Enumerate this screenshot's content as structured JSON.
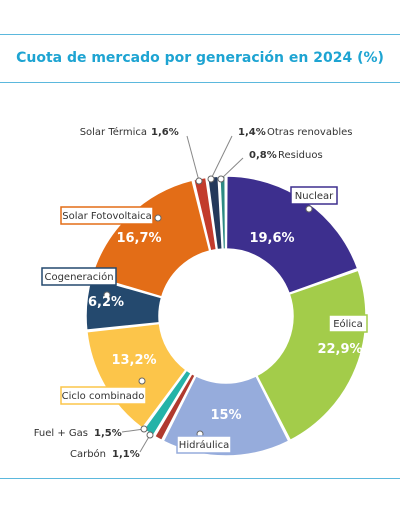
{
  "title": "Cuota de mercado por generación en 2024 (%)",
  "chart_data": {
    "type": "pie",
    "donut": true,
    "slices": [
      {
        "label": "Nuclear",
        "value": 19.6,
        "value_text": "19,6%",
        "color": "#3d2f8e"
      },
      {
        "label": "Eólica",
        "value": 22.9,
        "value_text": "22,9%",
        "color": "#a3cc4a"
      },
      {
        "label": "Hidráulica",
        "value": 15.0,
        "value_text": "15%",
        "color": "#96acdc"
      },
      {
        "label": "Carbón",
        "value": 1.1,
        "value_text": "1,1%",
        "color": "#b03a2e"
      },
      {
        "label": "Fuel + Gas",
        "value": 1.5,
        "value_text": "1,5%",
        "color": "#25b3a8"
      },
      {
        "label": "Ciclo combinado",
        "value": 13.2,
        "value_text": "13,2%",
        "color": "#fcc54a"
      },
      {
        "label": "Cogeneración",
        "value": 6.2,
        "value_text": "6,2%",
        "color": "#24496e"
      },
      {
        "label": "Solar Fotovoltaica",
        "value": 16.7,
        "value_text": "16,7%",
        "color": "#e36d17"
      },
      {
        "label": "Solar Térmica",
        "value": 1.6,
        "value_text": "1,6%",
        "color": "#c23b2c"
      },
      {
        "label": "Otras renovables",
        "value": 1.4,
        "value_text": "1,4%",
        "color": "#23385a"
      },
      {
        "label": "Residuos",
        "value": 0.8,
        "value_text": "0,8%",
        "color": "#2d8a83"
      }
    ]
  }
}
